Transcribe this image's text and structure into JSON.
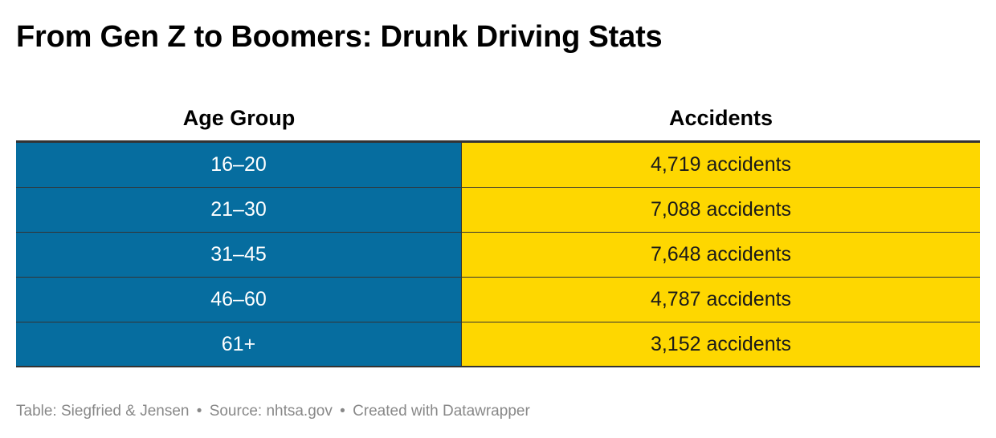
{
  "title": "From Gen Z to Boomers: Drunk Driving Stats",
  "colors": {
    "age_cell_bg": "#066d9f",
    "accidents_cell_bg": "#fed700",
    "footer_text": "#888888"
  },
  "chart_data": {
    "type": "table",
    "title": "From Gen Z to Boomers: Drunk Driving Stats",
    "columns": [
      "Age Group",
      "Accidents"
    ],
    "rows": [
      {
        "age_group": "16–20",
        "accidents": "4,719 accidents",
        "value": 4719
      },
      {
        "age_group": "21–30",
        "accidents": "7,088 accidents",
        "value": 7088
      },
      {
        "age_group": "31–45",
        "accidents": "7,648 accidents",
        "value": 7648
      },
      {
        "age_group": "46–60",
        "accidents": "4,787 accidents",
        "value": 4787
      },
      {
        "age_group": "61+",
        "accidents": "3,152 accidents",
        "value": 3152
      }
    ]
  },
  "footer": {
    "table_credit": "Table: Siegfried & Jensen",
    "source": "Source: nhtsa.gov",
    "created_with": "Created with Datawrapper",
    "separator": "•"
  }
}
